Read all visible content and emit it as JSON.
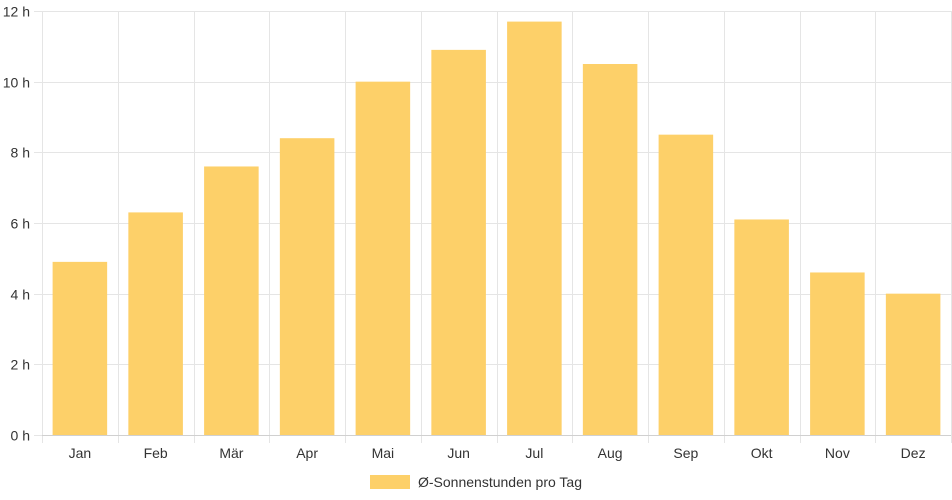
{
  "chart_data": {
    "type": "bar",
    "categories": [
      "Jan",
      "Feb",
      "Mär",
      "Apr",
      "Mai",
      "Jun",
      "Jul",
      "Aug",
      "Sep",
      "Okt",
      "Nov",
      "Dez"
    ],
    "series": [
      {
        "name": "Ø-Sonnenstunden pro Tag",
        "values": [
          4.9,
          6.3,
          7.6,
          8.4,
          10.0,
          10.9,
          11.7,
          10.5,
          8.5,
          6.1,
          4.6,
          4.0
        ],
        "color": "#fdd069"
      }
    ],
    "ylim": [
      0,
      12
    ],
    "y_ticks": [
      0,
      2,
      4,
      6,
      8,
      10,
      12
    ],
    "y_unit": "h",
    "grid": true,
    "legend_position": "bottom"
  }
}
